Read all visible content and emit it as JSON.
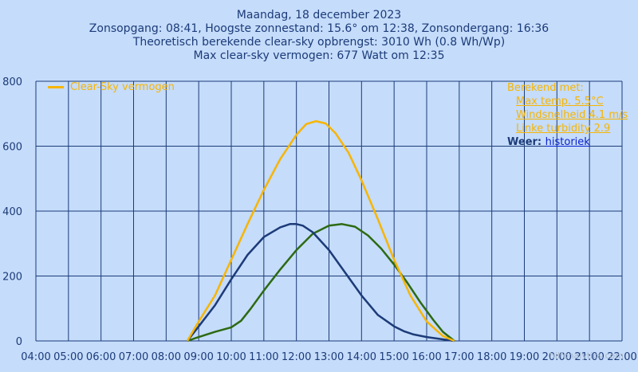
{
  "header": {
    "line1": "Maandag, 18 december 2023",
    "line2": "Zonsopgang: 08:41, Hoogste zonnestand: 15.6° om 12:38, Zonsondergang: 16:36",
    "line3": "Theoretisch berekende clear-sky opbrengst: 3010 Wh (0.8 Wh/Wp)",
    "line4": "Max clear-sky vermogen: 677 Watt om 12:35"
  },
  "legend": {
    "label": "Clear-Sky vermogen"
  },
  "info": {
    "heading": "Berekend met:",
    "temp": "Max temp. 5.5°C",
    "wind": "Windsnelheid 4.1 m/s",
    "linke": "Linke turbidity 2.9",
    "weer_label": "Weer:",
    "weer_link": "historiek"
  },
  "watermark": "hilfonalytics.com",
  "colors": {
    "background": "#c5dcfb",
    "grid": "#1c3b78",
    "clearsky": "#f7b500",
    "morning": "#1c3b78",
    "afternoon": "#2d6a12"
  },
  "chart_data": {
    "type": "line",
    "x_ticks": [
      "04:00",
      "05:00",
      "06:00",
      "07:00",
      "08:00",
      "09:00",
      "10:00",
      "11:00",
      "12:00",
      "13:00",
      "14:00",
      "15:00",
      "16:00",
      "17:00",
      "18:00",
      "19:00",
      "20:00",
      "21:00",
      "22:00"
    ],
    "y_ticks": [
      "0",
      "200",
      "400",
      "600",
      "800"
    ],
    "xlim": [
      4,
      22
    ],
    "ylim": [
      0,
      800
    ],
    "series": [
      {
        "name": "Clear-Sky vermogen",
        "color": "#f7b500",
        "x": [
          8.65,
          9.0,
          9.5,
          10.0,
          10.5,
          11.0,
          11.5,
          12.0,
          12.3,
          12.6,
          12.9,
          13.2,
          13.6,
          14.0,
          14.5,
          15.0,
          15.5,
          16.0,
          16.5,
          16.85
        ],
        "y": [
          0,
          60,
          140,
          250,
          360,
          465,
          560,
          635,
          668,
          677,
          670,
          640,
          580,
          495,
          375,
          250,
          140,
          60,
          15,
          0
        ]
      },
      {
        "color": "#1c3b78",
        "x": [
          8.65,
          9.0,
          9.5,
          10.0,
          10.5,
          11.0,
          11.5,
          11.8,
          12.0,
          12.2,
          12.5,
          13.0,
          13.5,
          14.0,
          14.5,
          15.0,
          15.3,
          15.6,
          16.0,
          16.5,
          16.85
        ],
        "y": [
          0,
          45,
          110,
          190,
          265,
          320,
          350,
          360,
          360,
          355,
          335,
          280,
          210,
          140,
          80,
          45,
          30,
          20,
          12,
          5,
          0
        ]
      },
      {
        "color": "#2d6a12",
        "x": [
          8.65,
          9.0,
          9.5,
          10.0,
          10.3,
          10.6,
          11.0,
          11.5,
          12.0,
          12.5,
          13.0,
          13.4,
          13.8,
          14.2,
          14.6,
          15.0,
          15.4,
          15.8,
          16.2,
          16.5,
          16.85
        ],
        "y": [
          0,
          12,
          28,
          42,
          62,
          100,
          155,
          220,
          280,
          330,
          355,
          360,
          352,
          325,
          285,
          235,
          180,
          120,
          65,
          28,
          0
        ]
      }
    ]
  }
}
